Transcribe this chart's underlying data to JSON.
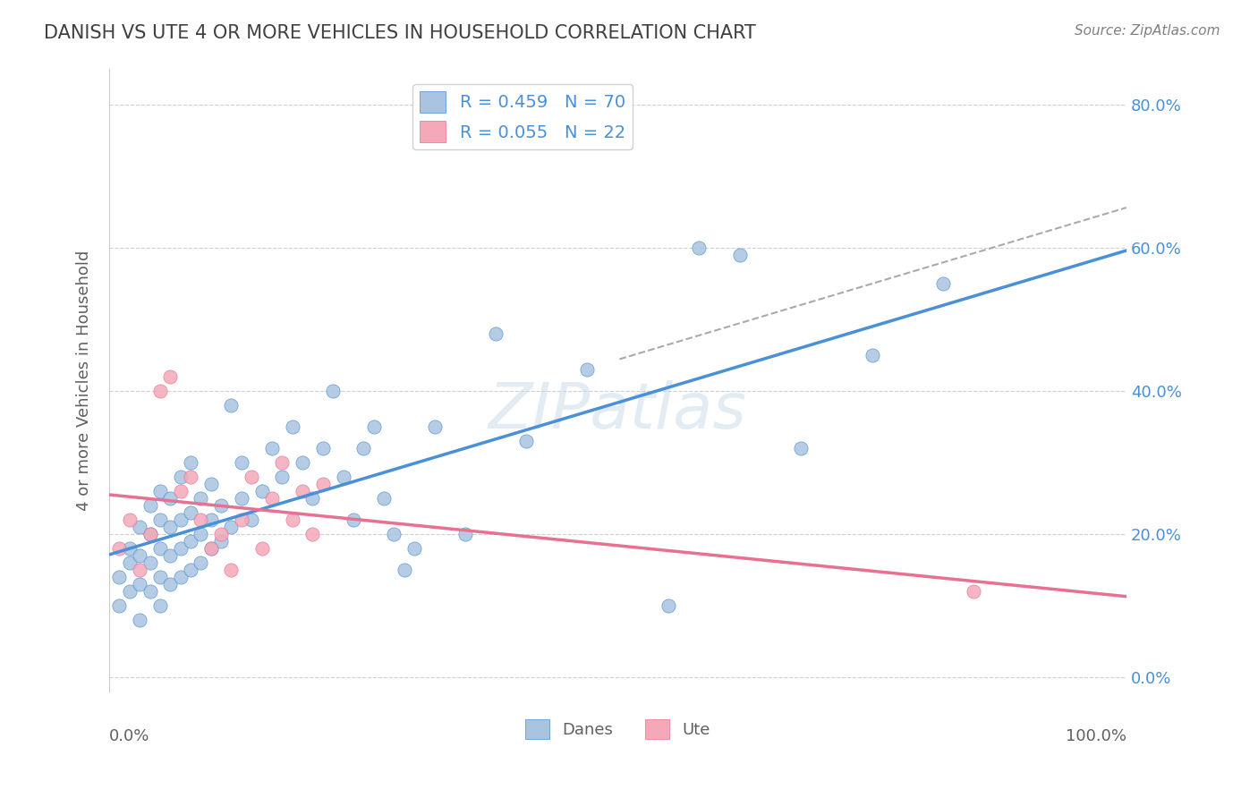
{
  "title": "DANISH VS UTE 4 OR MORE VEHICLES IN HOUSEHOLD CORRELATION CHART",
  "source": "Source: ZipAtlas.com",
  "ylabel": "4 or more Vehicles in Household",
  "xlim": [
    0,
    100
  ],
  "ylim": [
    -2,
    85
  ],
  "yticks": [
    0,
    20,
    40,
    60,
    80
  ],
  "danes_color": "#a8c4e0",
  "ute_color": "#f4a8b8",
  "danes_line_color": "#4a90d9",
  "ute_line_color": "#e87090",
  "watermark": "ZIPatlas",
  "danes_x": [
    1,
    1,
    2,
    2,
    2,
    3,
    3,
    3,
    3,
    4,
    4,
    4,
    4,
    5,
    5,
    5,
    5,
    5,
    6,
    6,
    6,
    6,
    7,
    7,
    7,
    7,
    8,
    8,
    8,
    8,
    9,
    9,
    9,
    10,
    10,
    10,
    11,
    11,
    12,
    12,
    13,
    13,
    14,
    15,
    16,
    17,
    18,
    19,
    20,
    21,
    22,
    23,
    24,
    25,
    26,
    27,
    28,
    29,
    30,
    32,
    35,
    38,
    41,
    47,
    55,
    58,
    62,
    68,
    75,
    82
  ],
  "danes_y": [
    10,
    14,
    12,
    16,
    18,
    8,
    13,
    17,
    21,
    12,
    16,
    20,
    24,
    10,
    14,
    18,
    22,
    26,
    13,
    17,
    21,
    25,
    14,
    18,
    22,
    28,
    15,
    19,
    23,
    30,
    16,
    20,
    25,
    18,
    22,
    27,
    19,
    24,
    21,
    38,
    25,
    30,
    22,
    26,
    32,
    28,
    35,
    30,
    25,
    32,
    40,
    28,
    22,
    32,
    35,
    25,
    20,
    15,
    18,
    35,
    20,
    48,
    33,
    43,
    10,
    60,
    59,
    32,
    45,
    55
  ],
  "ute_x": [
    1,
    2,
    3,
    4,
    5,
    6,
    7,
    8,
    9,
    10,
    11,
    12,
    13,
    14,
    15,
    16,
    17,
    18,
    19,
    20,
    21,
    85
  ],
  "ute_y": [
    18,
    22,
    15,
    20,
    40,
    42,
    26,
    28,
    22,
    18,
    20,
    15,
    22,
    28,
    18,
    25,
    30,
    22,
    26,
    20,
    27,
    12
  ],
  "background_color": "#ffffff",
  "grid_color": "#d0d0d0",
  "title_color": "#404040",
  "axis_color": "#606060"
}
